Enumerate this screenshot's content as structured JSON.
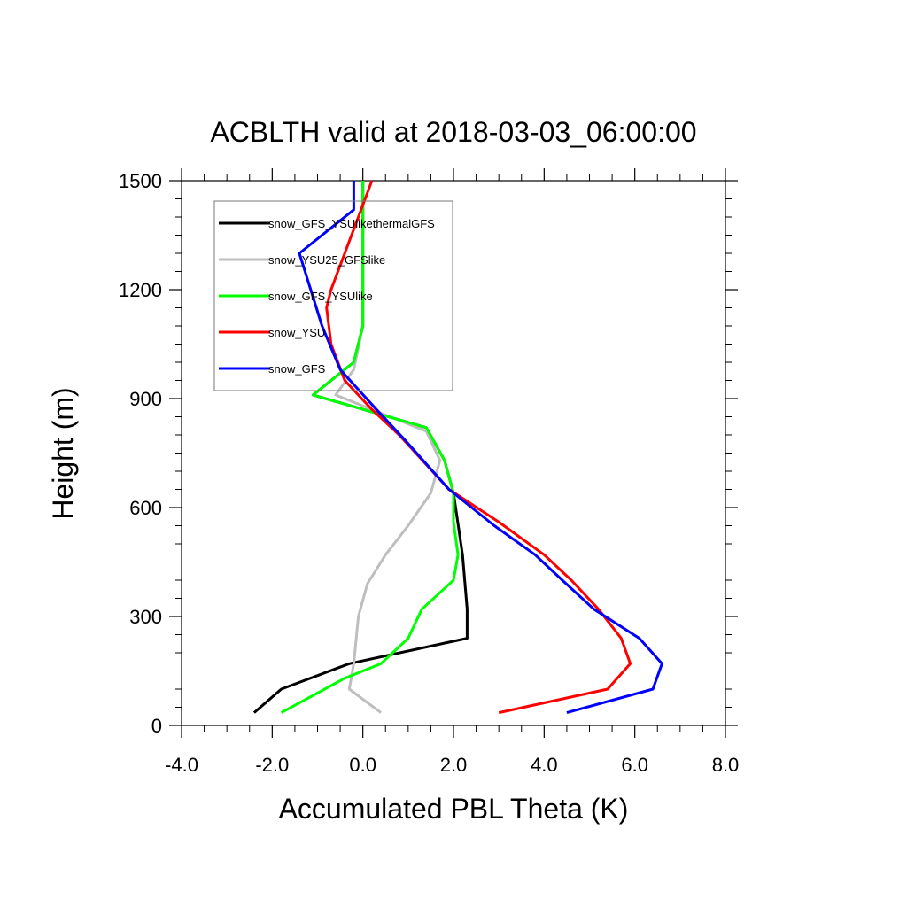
{
  "chart_data": {
    "type": "line",
    "title": "ACBLTH valid at 2018-03-03_06:00:00",
    "xlabel": "Accumulated PBL Theta (K)",
    "ylabel": "Height (m)",
    "xlim": [
      -4.0,
      8.0
    ],
    "ylim": [
      0,
      1500
    ],
    "xticks": [
      "-4.0",
      "-2.0",
      "0.0",
      "2.0",
      "4.0",
      "6.0",
      "8.0"
    ],
    "yticks": [
      "0",
      "300",
      "600",
      "900",
      "1200",
      "1500"
    ],
    "xtick_values": [
      -4,
      -2,
      0,
      2,
      4,
      6,
      8
    ],
    "ytick_values": [
      0,
      300,
      600,
      900,
      1200,
      1500
    ],
    "legend_placement": "top-left",
    "grid": false,
    "series": [
      {
        "name": "snow_GFS_YSUlikethermalGFS",
        "color": "#000000",
        "points": [
          [
            -2.4,
            35
          ],
          [
            -1.8,
            100
          ],
          [
            -0.3,
            170
          ],
          [
            2.3,
            240
          ],
          [
            2.3,
            320
          ],
          [
            2.2,
            470
          ],
          [
            2.0,
            640
          ],
          [
            1.8,
            730
          ],
          [
            1.4,
            820
          ],
          [
            -1.1,
            910
          ],
          [
            -0.2,
            1000
          ],
          [
            0.0,
            1100
          ],
          [
            0.0,
            1400
          ],
          [
            0.0,
            1500
          ]
        ]
      },
      {
        "name": "snow_YSU25_GFSlike",
        "color": "#bebebe",
        "points": [
          [
            0.4,
            35
          ],
          [
            -0.3,
            100
          ],
          [
            -0.2,
            170
          ],
          [
            -0.1,
            300
          ],
          [
            0.1,
            390
          ],
          [
            0.5,
            470
          ],
          [
            1.0,
            550
          ],
          [
            1.5,
            640
          ],
          [
            1.7,
            730
          ],
          [
            1.4,
            810
          ],
          [
            -0.6,
            910
          ],
          [
            -0.2,
            980
          ],
          [
            0.0,
            1100
          ],
          [
            0.0,
            1500
          ]
        ]
      },
      {
        "name": "snow_GFS_YSUlike",
        "color": "#00ff00",
        "points": [
          [
            -1.8,
            35
          ],
          [
            -0.4,
            130
          ],
          [
            0.4,
            170
          ],
          [
            1.0,
            240
          ],
          [
            1.3,
            320
          ],
          [
            2.0,
            400
          ],
          [
            2.1,
            470
          ],
          [
            2.0,
            560
          ],
          [
            2.0,
            640
          ],
          [
            1.8,
            730
          ],
          [
            1.4,
            820
          ],
          [
            -1.1,
            910
          ],
          [
            -0.2,
            1000
          ],
          [
            0.0,
            1100
          ],
          [
            0.0,
            1500
          ]
        ]
      },
      {
        "name": "snow_YSU",
        "color": "#ff0000",
        "points": [
          [
            3.0,
            35
          ],
          [
            5.4,
            100
          ],
          [
            5.9,
            170
          ],
          [
            5.7,
            240
          ],
          [
            5.2,
            320
          ],
          [
            4.6,
            400
          ],
          [
            4.0,
            470
          ],
          [
            3.0,
            560
          ],
          [
            1.9,
            650
          ],
          [
            0.8,
            800
          ],
          [
            0.2,
            870
          ],
          [
            -0.4,
            950
          ],
          [
            -0.7,
            1050
          ],
          [
            -0.8,
            1150
          ],
          [
            -0.7,
            1200
          ],
          [
            -0.4,
            1300
          ],
          [
            -0.1,
            1400
          ],
          [
            0.2,
            1500
          ]
        ]
      },
      {
        "name": "snow_GFS",
        "color": "#0000ff",
        "points": [
          [
            4.5,
            35
          ],
          [
            6.4,
            100
          ],
          [
            6.6,
            170
          ],
          [
            6.1,
            240
          ],
          [
            5.1,
            320
          ],
          [
            4.4,
            400
          ],
          [
            3.8,
            470
          ],
          [
            2.9,
            550
          ],
          [
            1.9,
            650
          ],
          [
            0.9,
            790
          ],
          [
            0.3,
            870
          ],
          [
            -0.5,
            980
          ],
          [
            -0.9,
            1100
          ],
          [
            -1.4,
            1300
          ],
          [
            -0.2,
            1420
          ],
          [
            -0.2,
            1500
          ]
        ]
      }
    ]
  }
}
